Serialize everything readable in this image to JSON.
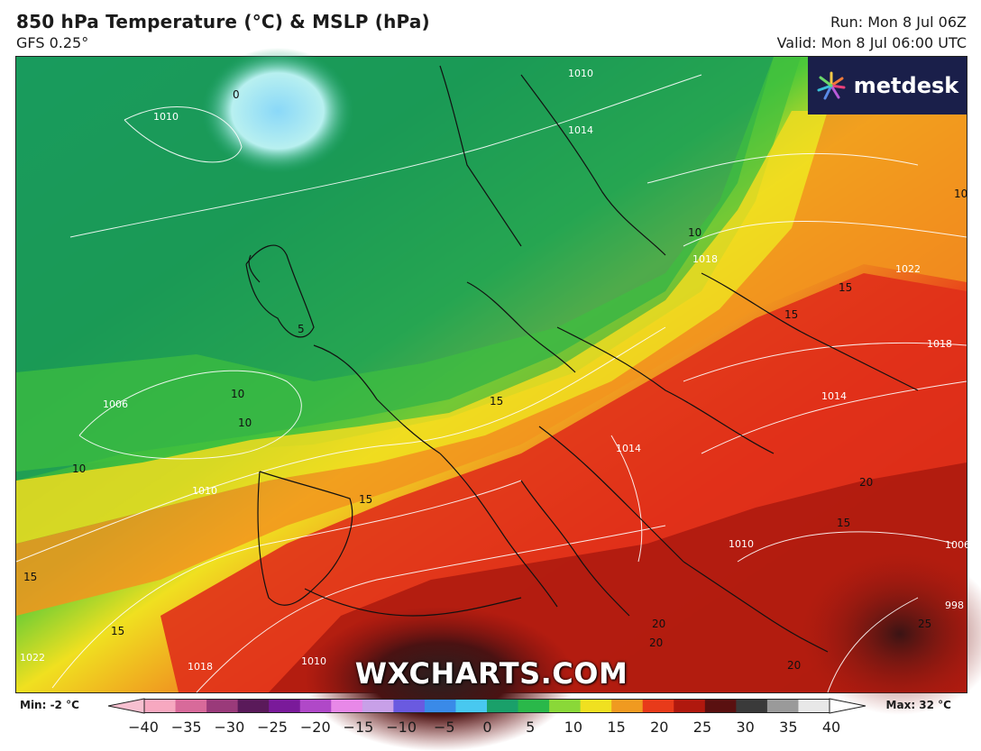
{
  "header": {
    "title": "850 hPa Temperature (°C) & MSLP (hPa)",
    "model": "GFS 0.25°",
    "run": "Run: Mon 8 Jul 06Z",
    "valid": "Valid: Mon 8 Jul 06:00 UTC"
  },
  "logo": {
    "text": "metdesk",
    "icon": "starburst-icon"
  },
  "watermark": "WXCHARTS.COM",
  "map_labels": {
    "temp_0": "0",
    "temp_5": "5",
    "temp_10_a": "10",
    "temp_10_b": "10",
    "temp_10_c": "10",
    "temp_10_d": "10",
    "temp_10_e": "10",
    "temp_15_a": "15",
    "temp_15_b": "15",
    "temp_15_c": "15",
    "temp_15_d": "15",
    "temp_15_e": "15",
    "temp_15_f": "15",
    "temp_15_g": "15",
    "temp_20_a": "20",
    "temp_20_b": "20",
    "temp_20_c": "20",
    "temp_20_d": "20",
    "temp_25": "25",
    "isobar_1010_a": "1010",
    "isobar_1010_b": "1010",
    "isobar_1010_c": "1010",
    "isobar_1010_d": "1010",
    "isobar_1010_e": "1010",
    "isobar_1006": "1006",
    "isobar_1014_a": "1014",
    "isobar_1014_b": "1014",
    "isobar_1014_c": "1014",
    "isobar_1018_a": "1018",
    "isobar_1018_b": "1018",
    "isobar_1018_c": "1018",
    "isobar_1022_a": "1022",
    "isobar_1022_b": "1022",
    "isobar_998": "998",
    "isobar_1006_b": "1006"
  },
  "legend": {
    "min": "Min: -2 °C",
    "max": "Max: 32 °C",
    "ticks": [
      "−40",
      "−35",
      "−30",
      "−25",
      "−20",
      "−15",
      "−10",
      "−5",
      "0",
      "5",
      "10",
      "15",
      "20",
      "25",
      "30",
      "35",
      "40"
    ],
    "colors": [
      "#f7a8c0",
      "#d86a9a",
      "#9a3a7a",
      "#5a1a5a",
      "#7a1a9a",
      "#b048c8",
      "#e888e8",
      "#c8a0e8",
      "#6a5ae0",
      "#3a8ae8",
      "#48c8f0",
      "#1aa06a",
      "#2ab84a",
      "#8ad838",
      "#f0e020",
      "#f09a20",
      "#e83a1a",
      "#b0180e",
      "#5a1010",
      "#3a3a3a",
      "#9a9a9a",
      "#e8e8e8"
    ]
  }
}
